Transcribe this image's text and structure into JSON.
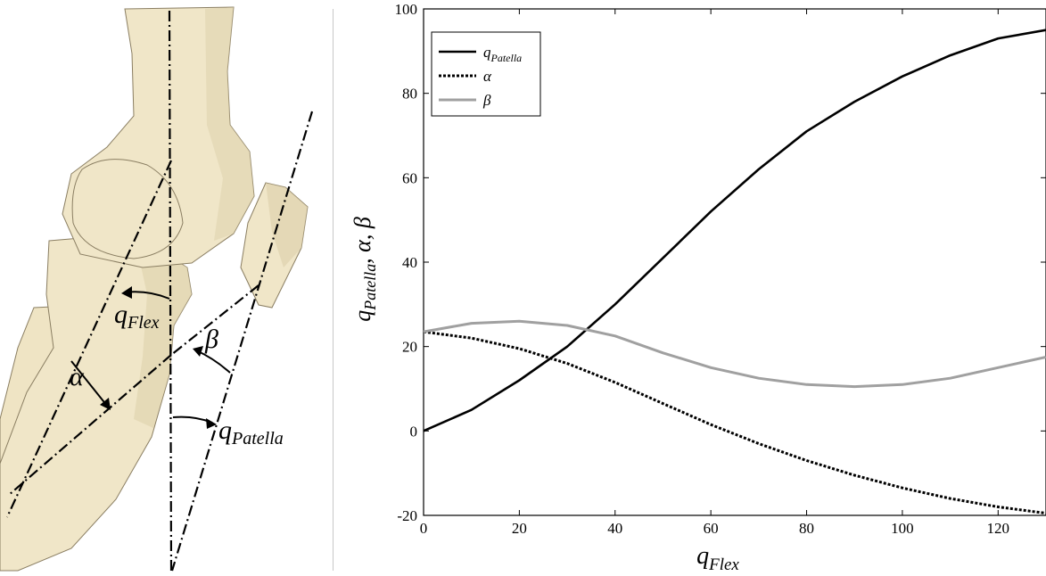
{
  "anatomy": {
    "colors": {
      "bone": "#f0e6c8",
      "bone_shade": "#d9cba4",
      "bone_edge": "#8a7e62",
      "line": "#000000"
    },
    "labels": {
      "flex_main": "q",
      "flex_sub": "Flex",
      "patella_main": "q",
      "patella_sub": "Patella",
      "alpha": "α",
      "beta": "β"
    }
  },
  "chart_data": {
    "type": "line",
    "xlabel_main": "q",
    "xlabel_sub": "Flex",
    "ylabel_main": "q",
    "ylabel_sub": "Patella",
    "ylabel_rest": ", α, β",
    "xlim": [
      0,
      130
    ],
    "ylim": [
      -20,
      100
    ],
    "xticks": [
      0,
      20,
      40,
      60,
      80,
      100,
      120
    ],
    "yticks": [
      -20,
      0,
      20,
      40,
      60,
      80,
      100
    ],
    "legend_position": "top-left",
    "series": [
      {
        "name": "q",
        "name_sub": "Patella",
        "style": "solid",
        "color": "#000000",
        "x": [
          0,
          10,
          20,
          30,
          40,
          50,
          60,
          70,
          80,
          90,
          100,
          110,
          120,
          130
        ],
        "y": [
          0,
          5,
          12,
          20,
          30,
          41,
          52,
          62,
          71,
          78,
          84,
          89,
          93,
          95
        ]
      },
      {
        "name": "α",
        "style": "dotted",
        "color": "#000000",
        "x": [
          0,
          10,
          20,
          30,
          40,
          50,
          60,
          70,
          80,
          90,
          100,
          110,
          120,
          130
        ],
        "y": [
          23.5,
          22,
          19.5,
          16,
          11.5,
          6.5,
          1.5,
          -3,
          -7,
          -10.5,
          -13.5,
          -16,
          -18,
          -19.5
        ]
      },
      {
        "name": "β",
        "style": "solid",
        "color": "#a0a0a0",
        "x": [
          0,
          10,
          20,
          30,
          40,
          50,
          60,
          70,
          80,
          90,
          100,
          110,
          120,
          130
        ],
        "y": [
          23.5,
          25.5,
          26,
          25,
          22.5,
          18.5,
          15,
          12.5,
          11,
          10.5,
          11,
          12.5,
          15,
          17.5
        ]
      }
    ]
  }
}
